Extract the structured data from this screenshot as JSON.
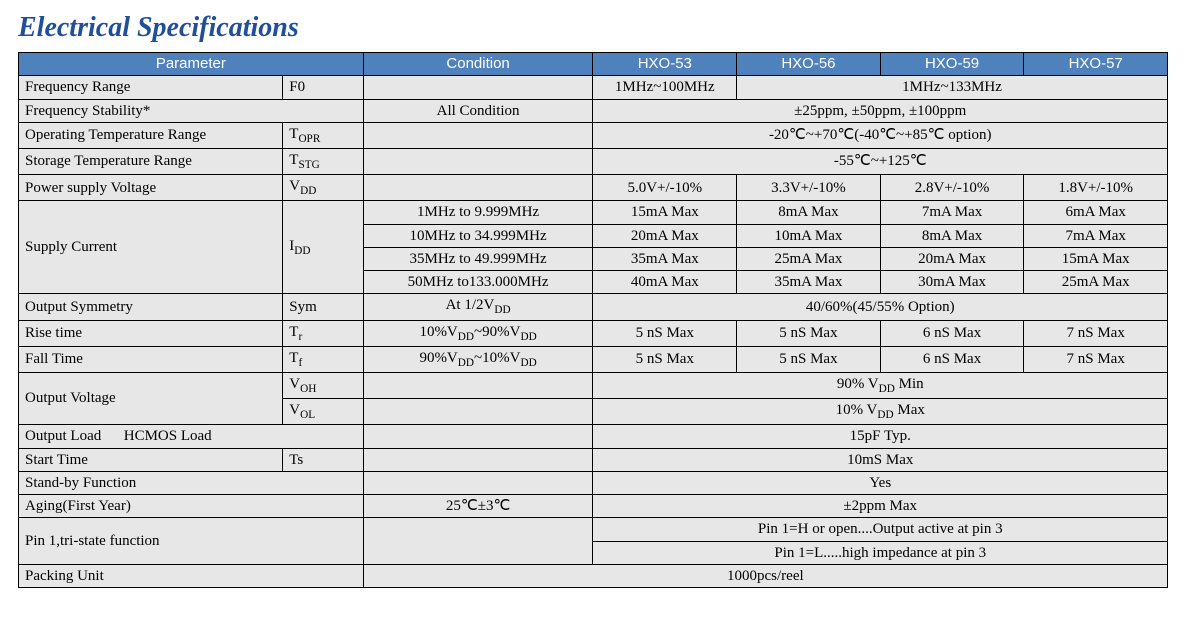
{
  "title": "Electrical Specifications",
  "headers": {
    "parameter": "Parameter",
    "condition": "Condition",
    "col1": "HXO-53",
    "col2": "HXO-56",
    "col3": "HXO-59",
    "col4": "HXO-57"
  },
  "rows": {
    "freq_range": {
      "name": "Frequency Range",
      "sym": "F0",
      "cond": "",
      "v1": "1MHz~100MHz",
      "v234": "1MHz~133MHz"
    },
    "freq_stab": {
      "name": "Frequency Stability*",
      "cond": "All Condition",
      "v": "±25ppm, ±50ppm, ±100ppm"
    },
    "op_temp": {
      "name": "Operating Temperature Range",
      "sym": "TOPR",
      "v": "-20℃~+70℃(-40℃~+85℃ option)"
    },
    "stg_temp": {
      "name": "Storage Temperature Range",
      "sym": "TSTG",
      "v": "-55℃~+125℃"
    },
    "vdd": {
      "name": "Power supply Voltage",
      "sym": "VDD",
      "v1": "5.0V+/-10%",
      "v2": "3.3V+/-10%",
      "v3": "2.8V+/-10%",
      "v4": "1.8V+/-10%"
    },
    "idd": {
      "name": "Supply Current",
      "sym": "IDD",
      "r1": {
        "cond": "1MHz to 9.999MHz",
        "v1": "15mA Max",
        "v2": "8mA Max",
        "v3": "7mA Max",
        "v4": "6mA Max"
      },
      "r2": {
        "cond": "10MHz to 34.999MHz",
        "v1": "20mA Max",
        "v2": "10mA Max",
        "v3": "8mA Max",
        "v4": "7mA Max"
      },
      "r3": {
        "cond": "35MHz to 49.999MHz",
        "v1": "35mA Max",
        "v2": "25mA Max",
        "v3": "20mA Max",
        "v4": "15mA Max"
      },
      "r4": {
        "cond": "50MHz to133.000MHz",
        "v1": "40mA Max",
        "v2": "35mA Max",
        "v3": "30mA Max",
        "v4": "25mA Max"
      }
    },
    "sym": {
      "name": "Output Symmetry",
      "sym": "Sym",
      "cond": "At 1/2VDD",
      "v": "40/60%(45/55% Option)"
    },
    "tr": {
      "name": "Rise time",
      "sym": "Tr",
      "cond": "10%VDD~90%VDD",
      "v1": "5 nS Max",
      "v2": "5 nS Max",
      "v3": "6 nS Max",
      "v4": "7 nS Max"
    },
    "tf": {
      "name": "Fall Time",
      "sym": "Tf",
      "cond": "90%VDD~10%VDD",
      "v1": "5 nS Max",
      "v2": "5 nS Max",
      "v3": "6 nS Max",
      "v4": "7 nS Max"
    },
    "vout": {
      "name": "Output Voltage",
      "voh_sym": "VOH",
      "vol_sym": "VOL",
      "voh": "90% VDD Min",
      "vol": "10% VDD Max"
    },
    "load": {
      "name": "Output Load      HCMOS Load",
      "v": "15pF Typ."
    },
    "start": {
      "name": "Start Time",
      "sym": "Ts",
      "v": "10mS Max"
    },
    "standby": {
      "name": "Stand-by Function",
      "v": "Yes"
    },
    "aging": {
      "name": "Aging(First Year)",
      "cond": "25℃±3℃",
      "v": "±2ppm Max"
    },
    "tristate": {
      "name": "Pin 1,tri-state function",
      "v1": "Pin 1=H or open....Output active at pin 3",
      "v2": "Pin 1=L.....high impedance at pin 3"
    },
    "packing": {
      "name": "Packing Unit",
      "v": "1000pcs/reel"
    }
  }
}
